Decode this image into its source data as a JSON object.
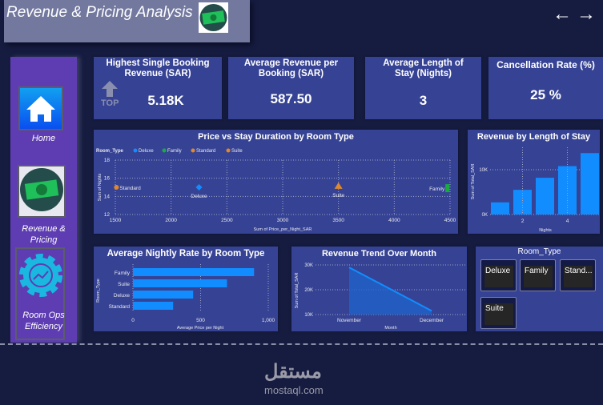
{
  "header": {
    "title": "Revenue & Pricing Analysis",
    "icon": "money-icon",
    "nav_back": "←",
    "nav_forward": "→"
  },
  "sidebar": {
    "items": [
      {
        "label": "Home",
        "icon": "home-icon"
      },
      {
        "label": "Revenue & Pricing",
        "icon": "money-icon"
      },
      {
        "label": "Room Ops Efficiency",
        "icon": "gear-chart-icon"
      }
    ]
  },
  "kpis": [
    {
      "title": "Highest Single Booking Revenue (SAR)",
      "value": "5.18K",
      "badge": "TOP"
    },
    {
      "title": "Average Revenue per Booking (SAR)",
      "value": "587.50"
    },
    {
      "title": "Average Length of Stay (Nights)",
      "value": "3"
    },
    {
      "title": "Cancellation Rate (%)",
      "value": "25 %"
    }
  ],
  "colors": {
    "background": "#161c40",
    "card": "#364394",
    "sidebar": "#5e3db3",
    "bar": "#118dff",
    "deluxe": "#118dff",
    "family": "#1aab40",
    "standard": "#e0882b",
    "suite": "#e0882b"
  },
  "chart_data": [
    {
      "type": "scatter",
      "title": "Price vs Stay Duration by Room Type",
      "legend_title": "Room_Type",
      "legend": "top-left",
      "xlabel": "Sum of Price_per_Night_SAR",
      "ylabel": "Sum of Nights",
      "xlim": [
        1500,
        4500
      ],
      "ylim": [
        12,
        18
      ],
      "xticks": [
        "1500",
        "2000",
        "2500",
        "3000",
        "3500",
        "4000",
        "4500"
      ],
      "yticks": [
        "12",
        "14",
        "16",
        "18"
      ],
      "grid": true,
      "series": [
        {
          "name": "Deluxe",
          "x": 2250,
          "y": 15,
          "marker": "diamond"
        },
        {
          "name": "Family",
          "x": 4480,
          "y": 14.9,
          "marker": "square"
        },
        {
          "name": "Standard",
          "x": 1510,
          "y": 15,
          "marker": "circle"
        },
        {
          "name": "Suite",
          "x": 3500,
          "y": 15.1,
          "marker": "triangle"
        }
      ]
    },
    {
      "type": "bar",
      "title": "Revenue by Length of Stay",
      "xlabel": "Nights",
      "ylabel": "Sum of Total_SAR",
      "categories": [
        1,
        2,
        3,
        4,
        5
      ],
      "values": [
        2700,
        5500,
        8200,
        10800,
        13700
      ],
      "ylim": [
        0,
        15000
      ],
      "xticks": [
        "2",
        "4"
      ],
      "yticks": [
        "0K",
        "10K"
      ]
    },
    {
      "type": "bar",
      "orientation": "horizontal",
      "title": "Average Nightly Rate by Room Type",
      "xlabel": "Average Price per Night",
      "ylabel": "Room_Type",
      "categories": [
        "Family",
        "Suite",
        "Deluxe",
        "Standard"
      ],
      "values": [
        895,
        695,
        445,
        297
      ],
      "xlim": [
        0,
        1000
      ],
      "xticks": [
        "0",
        "500",
        "1,000"
      ]
    },
    {
      "type": "area",
      "title": "Revenue Trend Over Month",
      "xlabel": "Month",
      "ylabel": "Sum of Total_SAR",
      "categories": [
        "November",
        "December"
      ],
      "values": [
        29000,
        11500
      ],
      "ylim": [
        10000,
        30000
      ],
      "yticks": [
        "10K",
        "20K",
        "30K"
      ]
    }
  ],
  "slicer": {
    "title": "Room_Type",
    "options": [
      "Deluxe",
      "Family",
      "Stand...",
      "Suite"
    ]
  },
  "watermark": {
    "arabic": "مستقل",
    "latin": "mostaql.com"
  }
}
